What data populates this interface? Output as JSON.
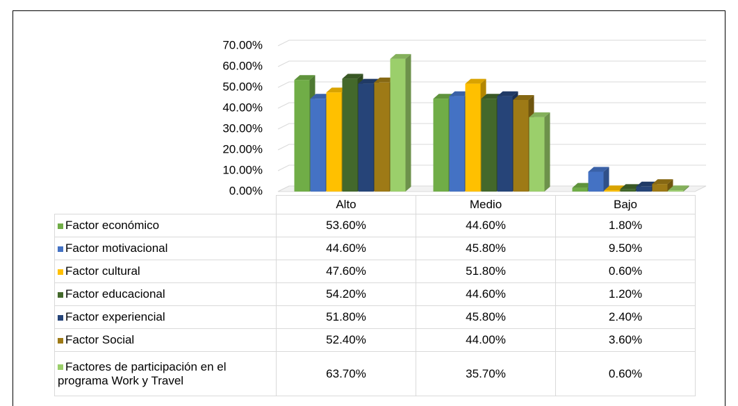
{
  "chart_data": {
    "type": "bar3d",
    "categories": [
      "Alto",
      "Medio",
      "Bajo"
    ],
    "series": [
      {
        "name": "Factor económico",
        "color": "#70ad47",
        "values": [
          53.6,
          44.6,
          1.8
        ],
        "value_labels": [
          "53.60%",
          "44.60%",
          "1.80%"
        ]
      },
      {
        "name": "Factor motivacional",
        "color": "#4472c4",
        "values": [
          44.6,
          45.8,
          9.5
        ],
        "value_labels": [
          "44.60%",
          "45.80%",
          "9.50%"
        ]
      },
      {
        "name": "Factor cultural",
        "color": "#ffc000",
        "values": [
          47.6,
          51.8,
          0.6
        ],
        "value_labels": [
          "47.60%",
          "51.80%",
          "0.60%"
        ]
      },
      {
        "name": "Factor educacional",
        "color": "#43682b",
        "values": [
          54.2,
          44.6,
          1.2
        ],
        "value_labels": [
          "54.20%",
          "44.60%",
          "1.20%"
        ]
      },
      {
        "name": "Factor experiencial",
        "color": "#264478",
        "values": [
          51.8,
          45.8,
          2.4
        ],
        "value_labels": [
          "51.80%",
          "45.80%",
          "2.40%"
        ]
      },
      {
        "name": "Factor Social",
        "color": "#9e7a16",
        "values": [
          52.4,
          44.0,
          3.6
        ],
        "value_labels": [
          "52.40%",
          "44.00%",
          "3.60%"
        ]
      },
      {
        "name": "Factores de participación en el programa Work y Travel",
        "color": "#9bcf6b",
        "values": [
          63.7,
          35.7,
          0.6
        ],
        "value_labels": [
          "63.70%",
          "35.70%",
          "0.60%"
        ]
      }
    ],
    "ylim": [
      0,
      70
    ],
    "yticks": [
      {
        "value": 0,
        "label": "0.00%"
      },
      {
        "value": 10,
        "label": "10.00%"
      },
      {
        "value": 20,
        "label": "20.00%"
      },
      {
        "value": 30,
        "label": "30.00%"
      },
      {
        "value": 40,
        "label": "40.00%"
      },
      {
        "value": 50,
        "label": "50.00%"
      },
      {
        "value": 60,
        "label": "60.00%"
      },
      {
        "value": 70,
        "label": "70.00%"
      }
    ],
    "grid": true
  }
}
